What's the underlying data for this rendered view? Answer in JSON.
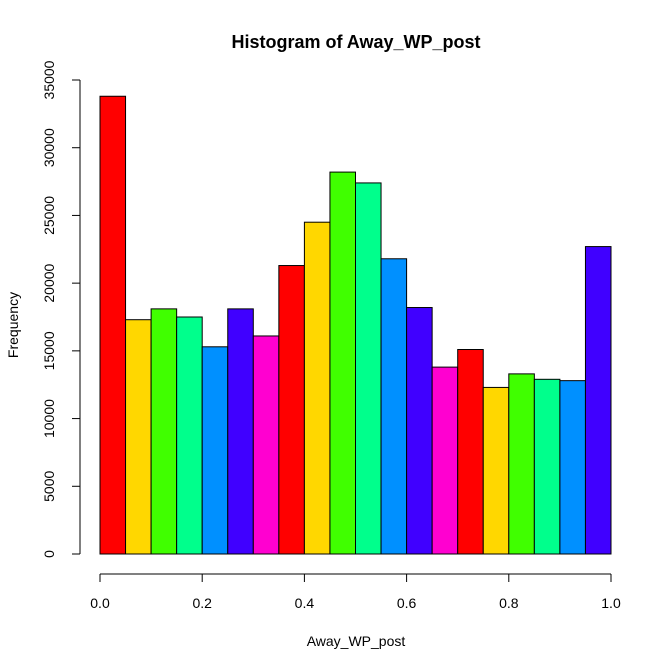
{
  "chart_data": {
    "type": "bar",
    "title": "Histogram of Away_WP_post",
    "xlabel": "Away_WP_post",
    "ylabel": "Frequency",
    "bin_edges": [
      0.0,
      0.05,
      0.1,
      0.15,
      0.2,
      0.25,
      0.3,
      0.35,
      0.4,
      0.45,
      0.5,
      0.55,
      0.6,
      0.65,
      0.7,
      0.75,
      0.8,
      0.85,
      0.9,
      0.95,
      1.0
    ],
    "values": [
      33800,
      17300,
      18100,
      17500,
      15300,
      18100,
      16100,
      21300,
      24500,
      28200,
      27400,
      21800,
      18200,
      13800,
      15100,
      12300,
      13300,
      12900,
      12800,
      22700
    ],
    "bar_colors": [
      "#FF0000",
      "#FFD700",
      "#40FF00",
      "#00FF8C",
      "#0090FF",
      "#4000FF",
      "#FF00D0",
      "#FF0000",
      "#FFD700",
      "#40FF00",
      "#00FF8C",
      "#0090FF",
      "#4000FF",
      "#FF00D0",
      "#FF0000",
      "#FFD700",
      "#40FF00",
      "#00FF8C",
      "#0090FF",
      "#4000FF"
    ],
    "xlim": [
      0,
      1
    ],
    "ylim": [
      0,
      35000
    ],
    "x_ticks": [
      "0.0",
      "0.2",
      "0.4",
      "0.6",
      "0.8",
      "1.0"
    ],
    "y_ticks": [
      "0",
      "5000",
      "10000",
      "15000",
      "20000",
      "25000",
      "30000",
      "35000"
    ],
    "grid": false,
    "legend": "none"
  }
}
